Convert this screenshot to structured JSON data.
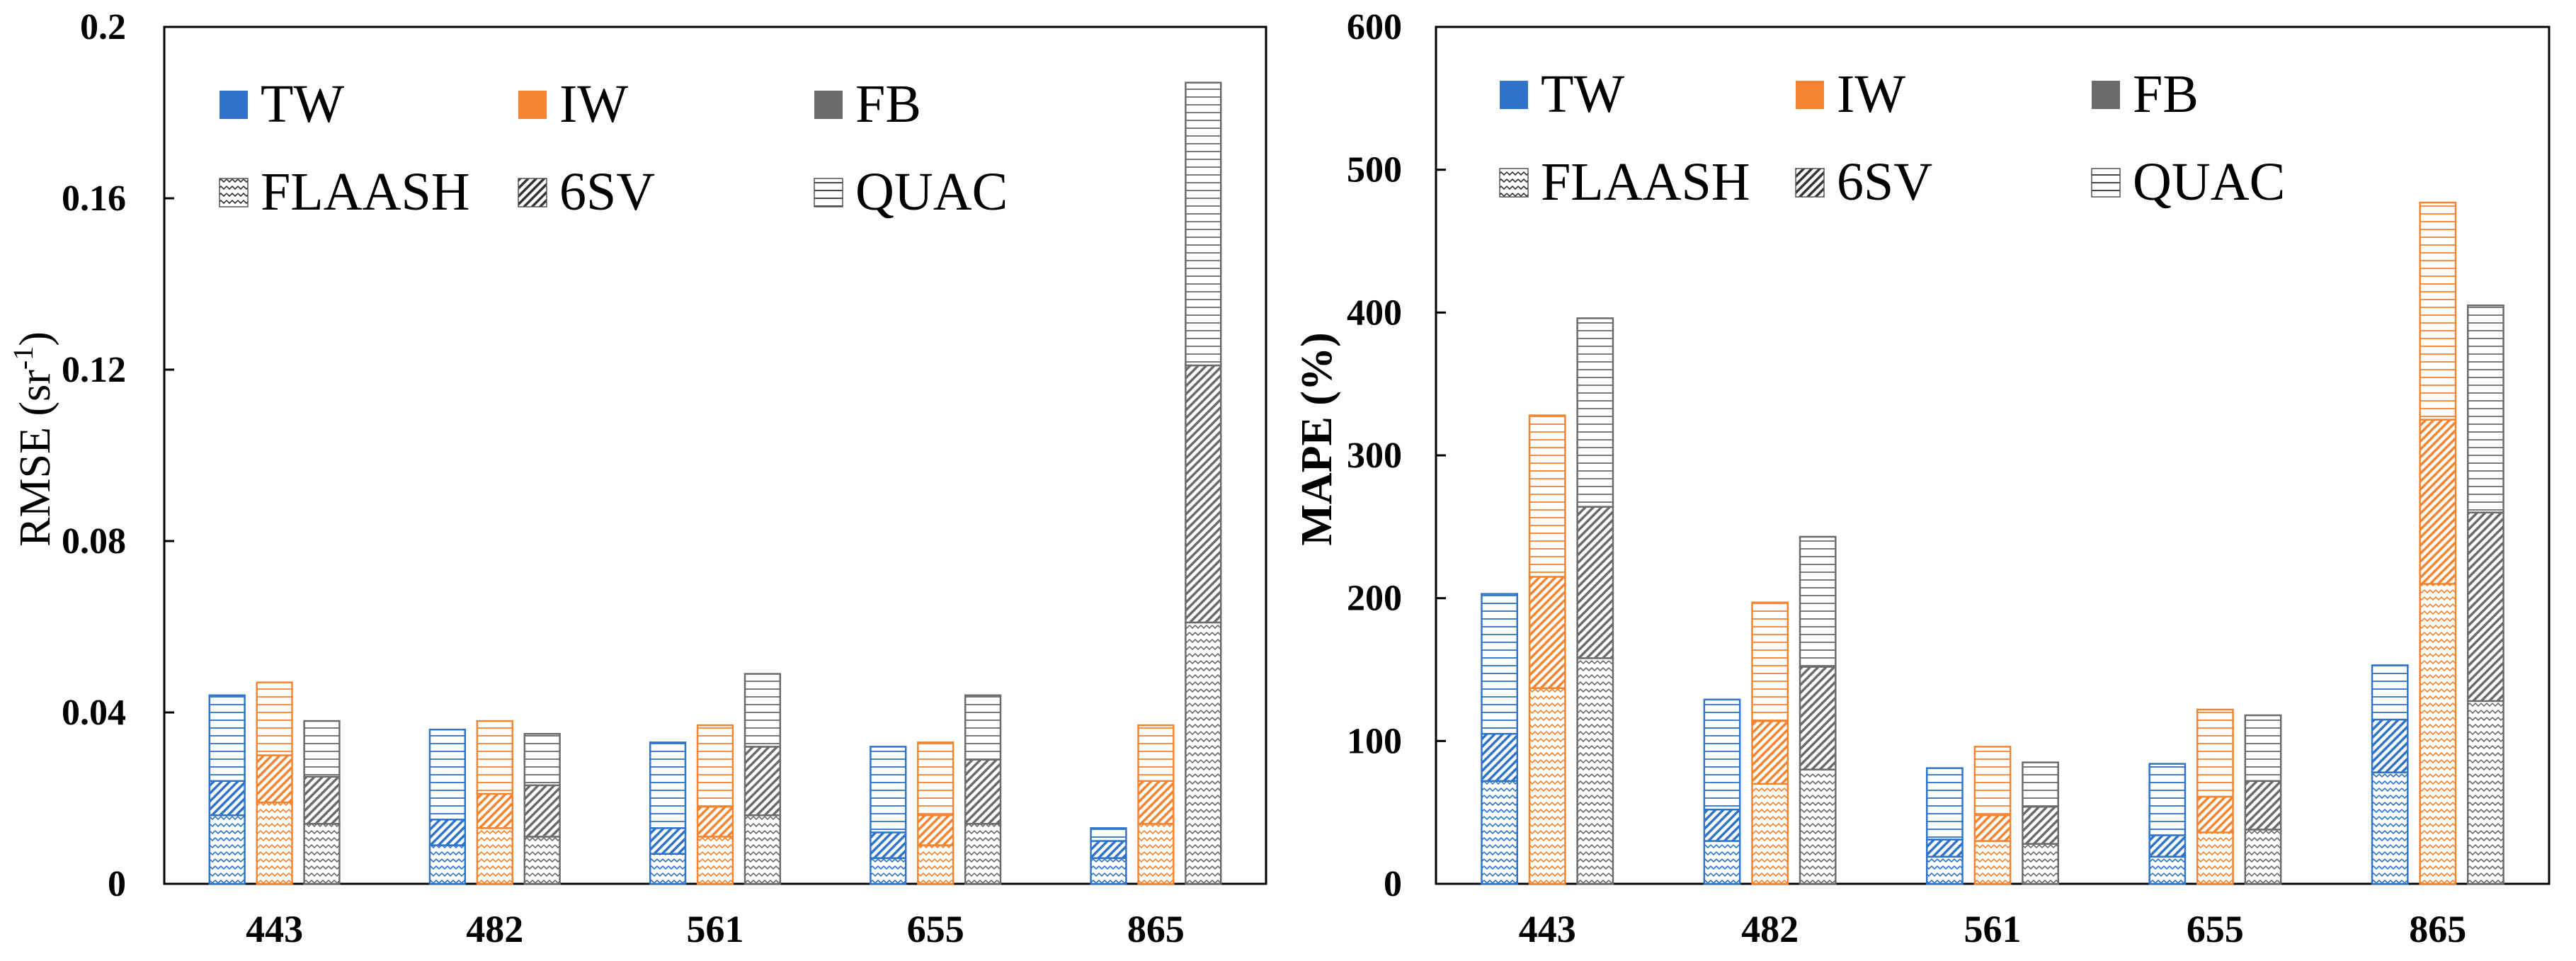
{
  "colors": {
    "TW": "#2f74c8",
    "IW": "#f58431",
    "FB": "#6b6b6b"
  },
  "chart_data": [
    {
      "type": "bar",
      "stacked": true,
      "ylabel_main": "RMSE (sr",
      "ylabel_sup": "-1",
      "ylabel_close": ")",
      "ylim": [
        0,
        0.2
      ],
      "yticks": [
        "0",
        "0.04",
        "0.08",
        "0.12",
        "0.16",
        "0.2"
      ],
      "ytick_values": [
        0,
        0.04,
        0.08,
        0.12,
        0.16,
        0.2
      ],
      "categories": [
        "443",
        "482",
        "561",
        "655",
        "865"
      ],
      "legend_groups": [
        "TW",
        "IW",
        "FB"
      ],
      "legend_methods": [
        "FLAASH",
        "6SV",
        "QUAC"
      ],
      "series": [
        {
          "group": "TW",
          "FLAASH": [
            0.016,
            0.009,
            0.007,
            0.006,
            0.006
          ],
          "6SV": [
            0.008,
            0.006,
            0.006,
            0.006,
            0.004
          ],
          "QUAC": [
            0.02,
            0.021,
            0.02,
            0.02,
            0.003
          ]
        },
        {
          "group": "IW",
          "FLAASH": [
            0.019,
            0.013,
            0.011,
            0.009,
            0.014
          ],
          "6SV": [
            0.011,
            0.008,
            0.007,
            0.007,
            0.01
          ],
          "QUAC": [
            0.017,
            0.017,
            0.019,
            0.017,
            0.013
          ]
        },
        {
          "group": "FB",
          "FLAASH": [
            0.014,
            0.011,
            0.016,
            0.014,
            0.061
          ],
          "6SV": [
            0.011,
            0.012,
            0.016,
            0.015,
            0.06
          ],
          "QUAC": [
            0.013,
            0.012,
            0.017,
            0.015,
            0.066
          ]
        }
      ]
    },
    {
      "type": "bar",
      "stacked": true,
      "ylabel_main": "MAPE (%)",
      "ylabel_sup": "",
      "ylabel_close": "",
      "ylim": [
        0,
        600
      ],
      "yticks": [
        "0",
        "100",
        "200",
        "300",
        "400",
        "500",
        "600"
      ],
      "ytick_values": [
        0,
        100,
        200,
        300,
        400,
        500,
        600
      ],
      "categories": [
        "443",
        "482",
        "561",
        "655",
        "865"
      ],
      "legend_groups": [
        "TW",
        "IW",
        "FB"
      ],
      "legend_methods": [
        "FLAASH",
        "6SV",
        "QUAC"
      ],
      "series": [
        {
          "group": "TW",
          "FLAASH": [
            72,
            30,
            19,
            19,
            78
          ],
          "6SV": [
            33,
            22,
            12,
            15,
            37
          ],
          "QUAC": [
            98,
            77,
            50,
            50,
            38
          ]
        },
        {
          "group": "IW",
          "FLAASH": [
            137,
            70,
            30,
            36,
            210
          ],
          "6SV": [
            78,
            44,
            18,
            25,
            115
          ],
          "QUAC": [
            113,
            83,
            48,
            61,
            152
          ]
        },
        {
          "group": "FB",
          "FLAASH": [
            158,
            80,
            28,
            38,
            128
          ],
          "6SV": [
            106,
            72,
            26,
            34,
            132
          ],
          "QUAC": [
            132,
            91,
            31,
            46,
            145
          ]
        }
      ]
    }
  ]
}
